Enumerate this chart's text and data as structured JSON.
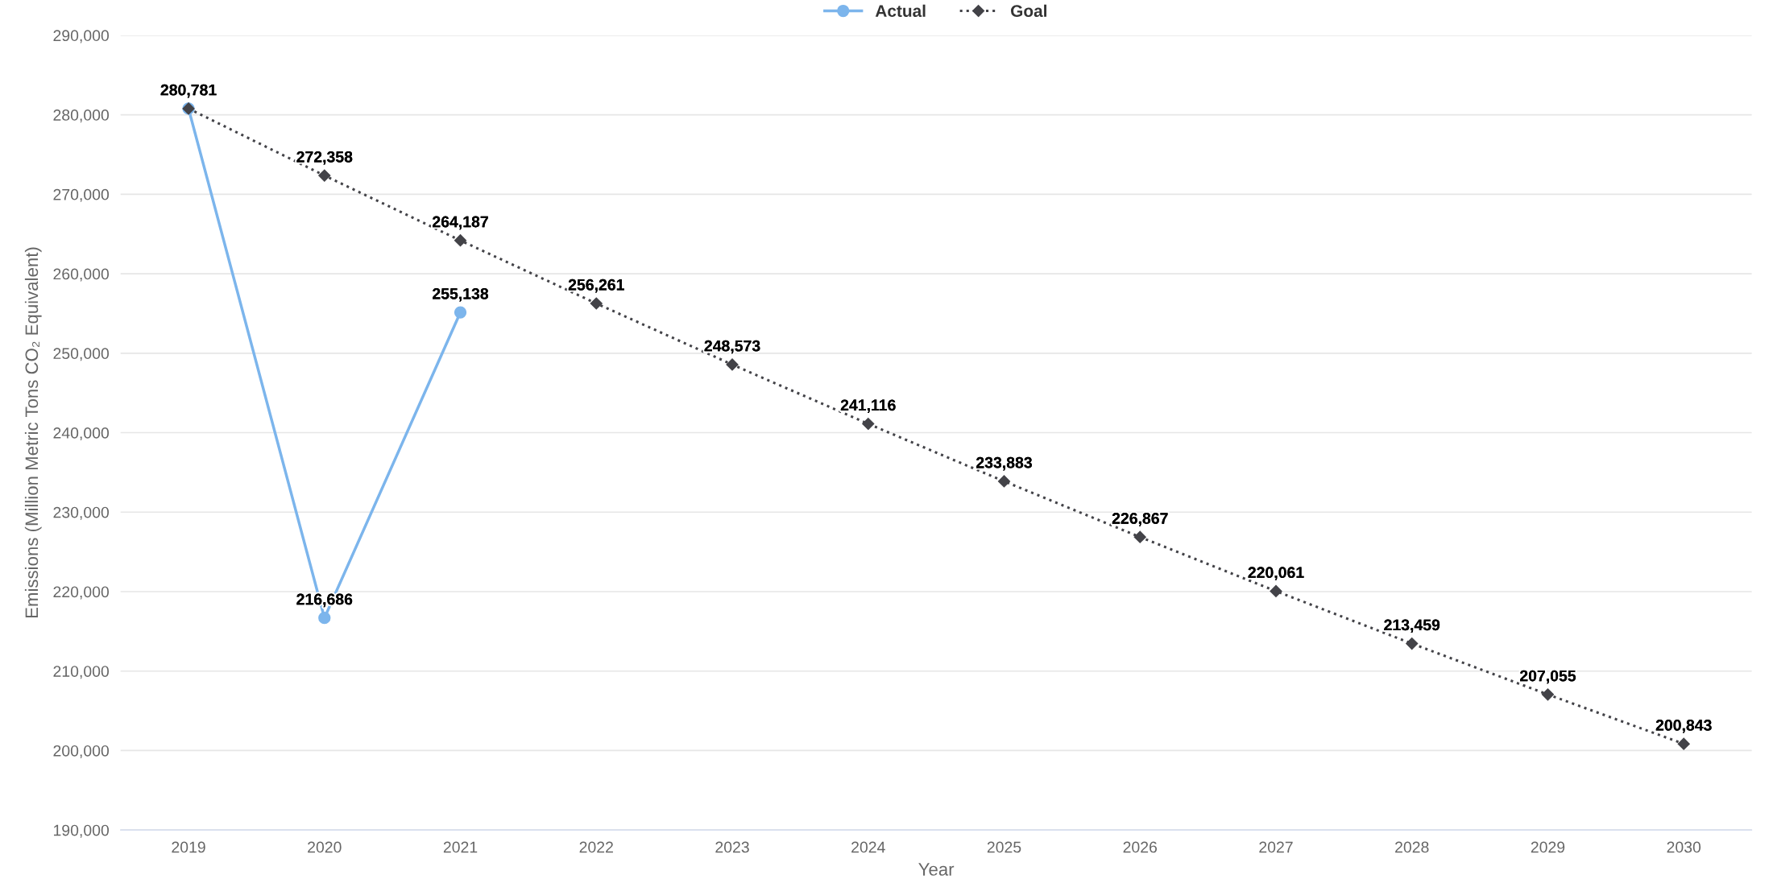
{
  "chart_data": {
    "type": "line",
    "xlabel": "Year",
    "ylabel": "Emissions (Million Metric Tons CO₂ Equivalent)",
    "categories": [
      "2019",
      "2020",
      "2021",
      "2022",
      "2023",
      "2024",
      "2025",
      "2026",
      "2027",
      "2028",
      "2029",
      "2030"
    ],
    "series": [
      {
        "name": "Actual",
        "color": "#7cb5ec",
        "marker": "circle",
        "line_style": "solid",
        "values": [
          280781,
          216686,
          255138,
          null,
          null,
          null,
          null,
          null,
          null,
          null,
          null,
          null
        ],
        "value_labels": [
          "280,781",
          "216,686",
          "255,138",
          null,
          null,
          null,
          null,
          null,
          null,
          null,
          null,
          null
        ]
      },
      {
        "name": "Goal",
        "color": "#434348",
        "marker": "diamond",
        "line_style": "dotted",
        "values": [
          280781,
          272358,
          264187,
          256261,
          248573,
          241116,
          233883,
          226867,
          220061,
          213459,
          207055,
          200843
        ],
        "value_labels": [
          null,
          "272,358",
          "264,187",
          "256,261",
          "248,573",
          "241,116",
          "233,883",
          "226,867",
          "220,061",
          "213,459",
          "207,055",
          "200,843"
        ]
      }
    ],
    "ylim": [
      190000,
      290000
    ],
    "yticks": [
      {
        "value": 190000,
        "label": "190,000"
      },
      {
        "value": 200000,
        "label": "200,000"
      },
      {
        "value": 210000,
        "label": "210,000"
      },
      {
        "value": 220000,
        "label": "220,000"
      },
      {
        "value": 230000,
        "label": "230,000"
      },
      {
        "value": 240000,
        "label": "240,000"
      },
      {
        "value": 250000,
        "label": "250,000"
      },
      {
        "value": 260000,
        "label": "260,000"
      },
      {
        "value": 270000,
        "label": "270,000"
      },
      {
        "value": 280000,
        "label": "280,000"
      },
      {
        "value": 290000,
        "label": "290,000"
      }
    ],
    "grid": "y",
    "legend": "top"
  }
}
